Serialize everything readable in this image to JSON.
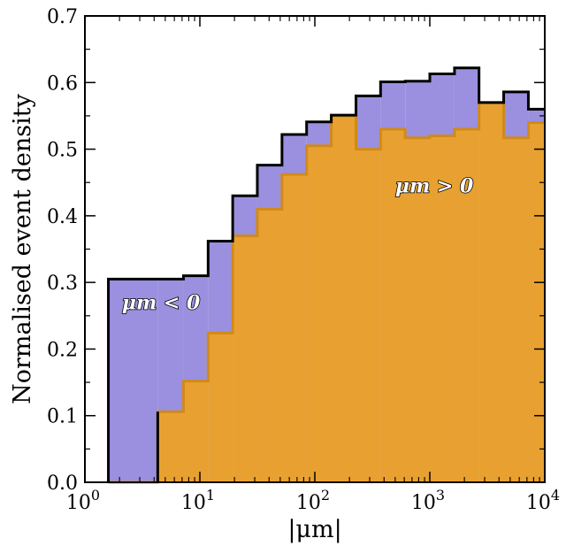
{
  "chart_data": {
    "type": "step-histogram",
    "xscale": "log",
    "xlim": [
      1,
      10000
    ],
    "ylim": [
      0,
      0.7
    ],
    "xlabel": "|μm|",
    "ylabel": "Normalised event density",
    "xticks": [
      {
        "value": 1,
        "base": "10",
        "exp": "0"
      },
      {
        "value": 10,
        "base": "10",
        "exp": "1"
      },
      {
        "value": 100,
        "base": "10",
        "exp": "2"
      },
      {
        "value": 1000,
        "base": "10",
        "exp": "3"
      },
      {
        "value": 10000,
        "base": "10",
        "exp": "4"
      }
    ],
    "yticks": [
      "0.0",
      "0.1",
      "0.2",
      "0.3",
      "0.4",
      "0.5",
      "0.6",
      "0.7"
    ],
    "series": [
      {
        "label": "μm < 0",
        "color": "#9a90df",
        "edges": [
          1.6,
          4.3,
          7.2,
          11.8,
          19.3,
          31.6,
          51.8,
          84.8,
          139,
          228,
          373,
          611,
          1000,
          1640,
          2680,
          4390,
          7200,
          10000
        ],
        "values": [
          0.305,
          0.305,
          0.31,
          0.362,
          0.43,
          0.476,
          0.522,
          0.541,
          0.551,
          0.58,
          0.601,
          0.602,
          0.613,
          0.622,
          0.57,
          0.586,
          0.56
        ]
      },
      {
        "label": "μm > 0",
        "color": "#fbb034",
        "edges": [
          1.6,
          4.3,
          7.2,
          11.8,
          19.3,
          31.6,
          51.8,
          84.8,
          139,
          228,
          373,
          611,
          1000,
          1640,
          2680,
          4390,
          7200,
          10000
        ],
        "values": [
          0.0,
          0.106,
          0.152,
          0.224,
          0.37,
          0.41,
          0.462,
          0.505,
          0.55,
          0.5,
          0.53,
          0.517,
          0.52,
          0.53,
          0.57,
          0.517,
          0.54
        ]
      }
    ],
    "overlap_color": "#e8a130",
    "annotations": [
      {
        "text": "μm < 0",
        "x": 2.1,
        "y": 0.26
      },
      {
        "text": "μm > 0",
        "x": 500,
        "y": 0.435
      }
    ]
  }
}
